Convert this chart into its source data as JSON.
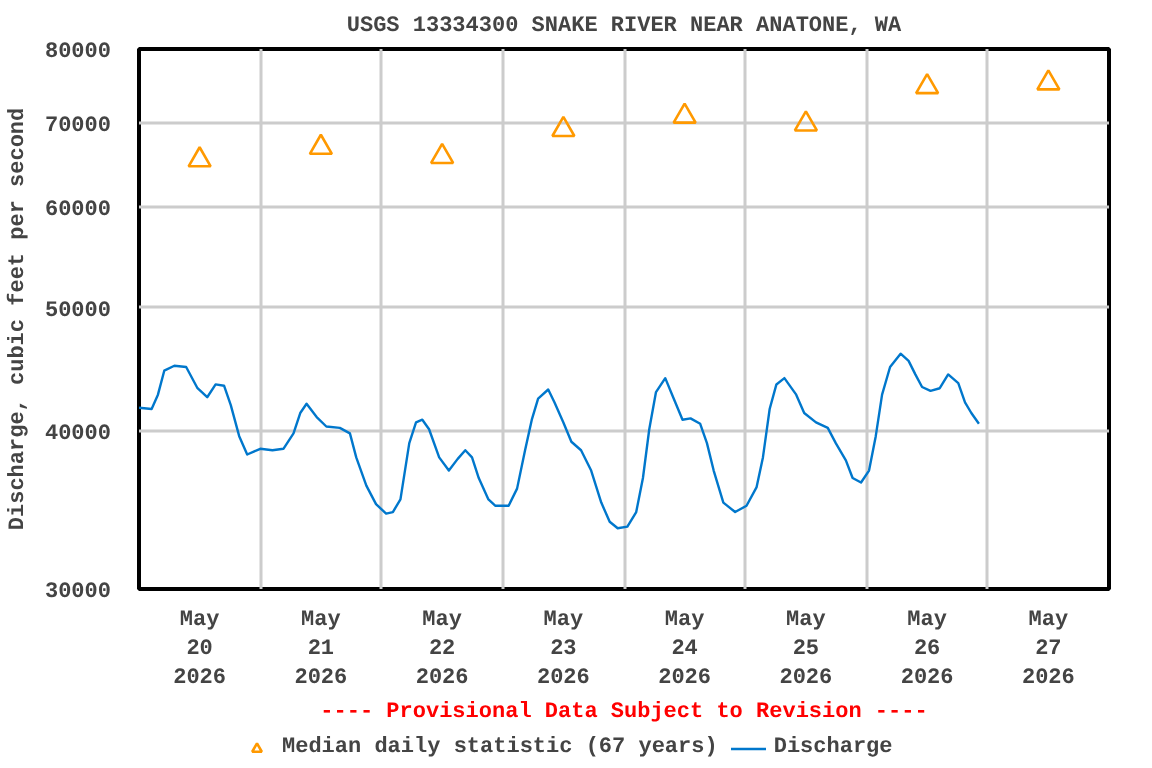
{
  "chart_data": {
    "type": "line",
    "title": "USGS 13334300 SNAKE RIVER NEAR ANATONE, WA",
    "ylabel": "Discharge, cubic feet per second",
    "annotations": [
      "---- Provisional Data Subject to Revision ----"
    ],
    "log": "y",
    "grid": true,
    "legend": "bottom",
    "xlim": [
      "2026-05-20T00:00",
      "2026-05-28T00:00"
    ],
    "xticks": [
      {
        "value": "2026-05-20T12:00",
        "label": "May\n20\n2026"
      },
      {
        "value": "2026-05-21T00:00",
        "label": null
      },
      {
        "value": "2026-05-21T12:00",
        "label": "May\n21\n2026"
      },
      {
        "value": "2026-05-22T00:00",
        "label": null
      },
      {
        "value": "2026-05-22T12:00",
        "label": "May\n22\n2026"
      },
      {
        "value": "2026-05-23T00:00",
        "label": null
      },
      {
        "value": "2026-05-23T12:00",
        "label": "May\n23\n2026"
      },
      {
        "value": "2026-05-24T00:00",
        "label": null
      },
      {
        "value": "2026-05-24T12:00",
        "label": "May\n24\n2026"
      },
      {
        "value": "2026-05-25T00:00",
        "label": null
      },
      {
        "value": "2026-05-25T12:00",
        "label": "May\n25\n2026"
      },
      {
        "value": "2026-05-26T00:00",
        "label": null
      },
      {
        "value": "2026-05-26T12:00",
        "label": "May\n26\n2026"
      },
      {
        "value": "2026-05-27T00:00",
        "label": null
      },
      {
        "value": "2026-05-27T12:00",
        "label": "May\n27\n2026"
      }
    ],
    "ylim": [
      30000,
      80000
    ],
    "yticks": [
      30000,
      40000,
      50000,
      60000,
      70000,
      80000
    ],
    "series": [
      {
        "name": "Median daily statistic (67 years)",
        "type": "scatter",
        "marker": "triangle",
        "color": "#ff9900",
        "x": [
          "2026-05-20T12:00",
          "2026-05-21T12:00",
          "2026-05-22T12:00",
          "2026-05-23T12:00",
          "2026-05-24T12:00",
          "2026-05-25T12:00",
          "2026-05-26T12:00",
          "2026-05-27T12:00"
        ],
        "values": [
          65400,
          66900,
          65800,
          69100,
          70800,
          69800,
          74700,
          75200
        ]
      },
      {
        "name": "Discharge",
        "color": "#0077cc",
        "x": [
          "2026-05-20T00:00",
          "2026-05-20T02:30",
          "2026-05-20T03:45",
          "2026-05-20T05:00",
          "2026-05-20T07:00",
          "2026-05-20T09:20",
          "2026-05-20T11:35",
          "2026-05-20T13:30",
          "2026-05-20T15:10",
          "2026-05-20T16:50",
          "2026-05-20T18:10",
          "2026-05-20T19:50",
          "2026-05-20T21:25",
          "2026-05-21T00:00",
          "2026-05-21T02:25",
          "2026-05-21T04:35",
          "2026-05-21T06:35",
          "2026-05-21T07:55",
          "2026-05-21T09:10",
          "2026-05-21T11:10",
          "2026-05-21T13:05",
          "2026-05-21T15:45",
          "2026-05-21T17:45",
          "2026-05-21T19:00",
          "2026-05-21T21:00",
          "2026-05-21T22:55",
          "2026-05-22T00:55",
          "2026-05-22T02:15",
          "2026-05-22T03:45",
          "2026-05-22T05:30",
          "2026-05-22T06:50",
          "2026-05-22T08:05",
          "2026-05-22T09:25",
          "2026-05-22T11:25",
          "2026-05-22T13:20",
          "2026-05-22T15:05",
          "2026-05-22T16:35",
          "2026-05-22T17:55",
          "2026-05-22T19:15",
          "2026-05-22T21:10",
          "2026-05-22T22:30",
          "2026-05-23T01:10",
          "2026-05-23T02:50",
          "2026-05-23T04:25",
          "2026-05-23T05:45",
          "2026-05-23T07:00",
          "2026-05-23T09:00",
          "2026-05-23T10:15",
          "2026-05-23T12:00",
          "2026-05-23T13:35",
          "2026-05-23T15:30",
          "2026-05-23T17:30",
          "2026-05-23T19:30",
          "2026-05-23T21:10",
          "2026-05-23T22:45",
          "2026-05-24T00:40",
          "2026-05-24T02:25",
          "2026-05-24T03:45",
          "2026-05-24T05:00",
          "2026-05-24T06:20",
          "2026-05-24T08:10",
          "2026-05-24T09:50",
          "2026-05-24T11:35",
          "2026-05-24T13:10",
          "2026-05-24T15:05",
          "2026-05-24T16:25",
          "2026-05-24T17:45",
          "2026-05-24T19:40",
          "2026-05-24T22:00",
          "2026-05-25T00:15",
          "2026-05-25T02:15",
          "2026-05-25T03:30",
          "2026-05-25T04:50",
          "2026-05-25T06:10",
          "2026-05-25T07:45",
          "2026-05-25T10:05",
          "2026-05-25T11:40",
          "2026-05-25T14:00",
          "2026-05-25T16:20",
          "2026-05-25T17:55",
          "2026-05-25T19:55",
          "2026-05-25T21:15",
          "2026-05-25T22:55",
          "2026-05-26T00:30",
          "2026-05-26T01:50",
          "2026-05-26T03:05",
          "2026-05-26T04:40",
          "2026-05-26T06:45",
          "2026-05-26T08:20",
          "2026-05-26T09:40",
          "2026-05-26T11:00",
          "2026-05-26T12:40",
          "2026-05-26T14:30",
          "2026-05-26T16:10",
          "2026-05-26T18:10",
          "2026-05-26T19:30",
          "2026-05-26T20:45",
          "2026-05-26T22:15"
        ],
        "values": [
          41700,
          41600,
          42700,
          44600,
          45000,
          44900,
          43200,
          42500,
          43500,
          43400,
          41900,
          39600,
          38300,
          38700,
          38600,
          38700,
          39800,
          41300,
          42000,
          41000,
          40300,
          40200,
          39800,
          38100,
          36200,
          35000,
          34400,
          34500,
          35300,
          39100,
          40600,
          40800,
          40100,
          38100,
          37200,
          38000,
          38600,
          38100,
          36700,
          35300,
          34900,
          34900,
          36000,
          38600,
          40800,
          42400,
          43100,
          42100,
          40600,
          39200,
          38600,
          37200,
          35100,
          33900,
          33500,
          33600,
          34500,
          36700,
          40100,
          42900,
          44000,
          42400,
          40800,
          40900,
          40500,
          39100,
          37200,
          35100,
          34500,
          34900,
          36100,
          38100,
          41600,
          43500,
          44000,
          42700,
          41300,
          40600,
          40200,
          39100,
          37900,
          36700,
          36400,
          37200,
          39600,
          42700,
          44900,
          46000,
          45400,
          44300,
          43300,
          43000,
          43200,
          44300,
          43600,
          42100,
          41300,
          40500
        ]
      }
    ]
  }
}
